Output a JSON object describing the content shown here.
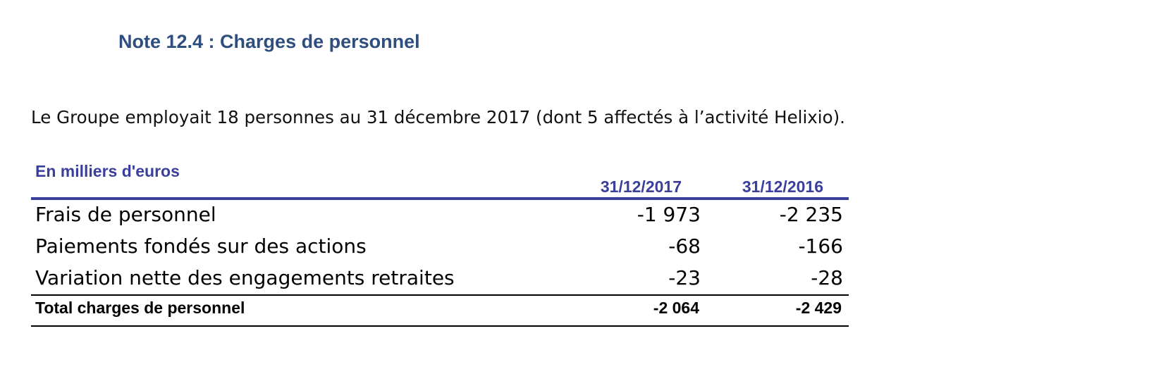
{
  "note": {
    "title": "Note 12.4 : Charges de personnel"
  },
  "intro": "Le Groupe employait 18 personnes au 31 décembre 2017 (dont 5 affectés à l’activité Helixio).",
  "table": {
    "unit_label": "En milliers d'euros",
    "columns": [
      "31/12/2017",
      "31/12/2016"
    ],
    "rows": [
      {
        "label": "Frais de personnel",
        "values": [
          "-1 973",
          "-2 235"
        ]
      },
      {
        "label": "Paiements fondés sur des actions",
        "values": [
          "-68",
          "-166"
        ]
      },
      {
        "label": "Variation nette des engagements retraites",
        "values": [
          "-23",
          "-28"
        ]
      }
    ],
    "total": {
      "label": "Total charges de personnel",
      "values": [
        "-2 064",
        "-2 429"
      ]
    }
  },
  "colors": {
    "title": "#2e4e7e",
    "header_accent": "#3a3f9c",
    "text": "#000000"
  }
}
